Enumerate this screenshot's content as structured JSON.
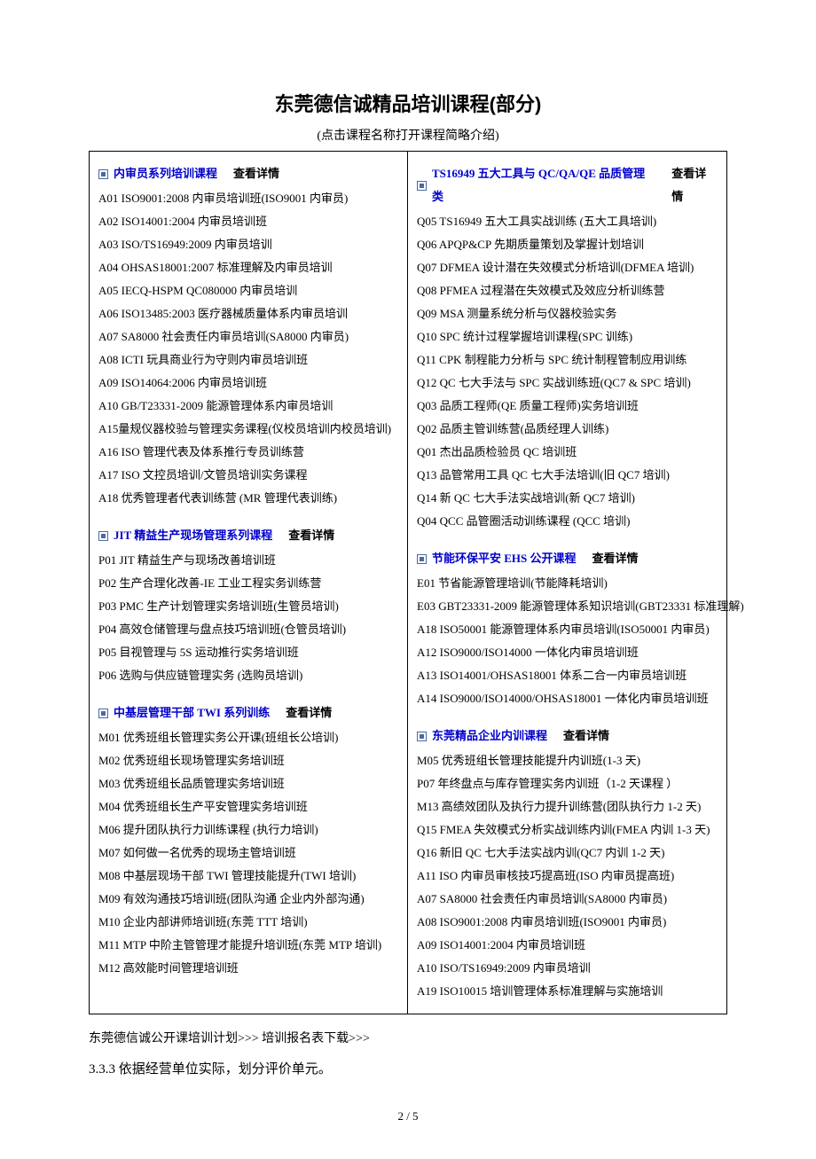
{
  "title": "东莞德信诚精品培训课程(部分)",
  "subtitle": "(点击课程名称打开课程简略介绍)",
  "detail_label": "查看详情",
  "page_number": "2 / 5",
  "bottom_line": "东莞德信诚公开课培训计划>>>    培训报名表下载>>>",
  "body_text": "3.3.3 依据经营单位实际，划分评价单元。",
  "left": [
    {
      "head": "内审员系列培训课程",
      "items": [
        "A01 ISO9001:2008 内审员培训班(ISO9001 内审员)",
        "A02 ISO14001:2004 内审员培训班",
        "A03 ISO/TS16949:2009 内审员培训",
        "A04 OHSAS18001:2007 标准理解及内审员培训",
        "A05 IECQ-HSPM QC080000 内审员培训",
        "A06 ISO13485:2003 医疗器械质量体系内审员培训",
        "A07 SA8000 社会责任内审员培训(SA8000 内审员)",
        "A08 ICTI 玩具商业行为守则内审员培训班",
        "A09 ISO14064:2006 内审员培训班",
        "A10 GB/T23331-2009 能源管理体系内审员培训",
        "A15量规仪器校验与管理实务课程(仪校员培训内校员培训)",
        "A16 ISO 管理代表及体系推行专员训练营",
        "A17 ISO 文控员培训/文管员培训实务课程",
        "A18 优秀管理者代表训练营 (MR 管理代表训练)"
      ]
    },
    {
      "head": "JIT 精益生产现场管理系列课程",
      "items": [
        "P01 JIT 精益生产与现场改善培训班",
        "P02 生产合理化改善-IE 工业工程实务训练营",
        "P03 PMC 生产计划管理实务培训班(生管员培训)",
        "P04 高效仓储管理与盘点技巧培训班(仓管员培训)",
        "P05 目视管理与 5S 运动推行实务培训班",
        "P06 选购与供应链管理实务 (选购员培训)"
      ]
    },
    {
      "head": "中基层管理干部 TWI 系列训练",
      "items": [
        "M01 优秀班组长管理实务公开课(班组长公培训)",
        "M02 优秀班组长现场管理实务培训班",
        "M03 优秀班组长品质管理实务培训班",
        "M04 优秀班组长生产平安管理实务培训班",
        "M06 提升团队执行力训练课程 (执行力培训)",
        "M07 如何做一名优秀的现场主管培训班",
        "M08 中基层现场干部 TWI 管理技能提升(TWI 培训)",
        "M09 有效沟通技巧培训班(团队沟通 企业内外部沟通)",
        "M10 企业内部讲师培训班(东莞 TTT 培训)",
        "M11 MTP 中阶主管管理才能提升培训班(东莞 MTP 培训)",
        "M12 高效能时间管理培训班"
      ]
    }
  ],
  "right": [
    {
      "head": "TS16949 五大工具与 QC/QA/QE 品质管理类",
      "items": [
        "Q05 TS16949 五大工具实战训练 (五大工具培训)",
        "Q06 APQP&CP 先期质量策划及掌握计划培训",
        "Q07 DFMEA 设计潜在失效模式分析培训(DFMEA 培训)",
        "Q08 PFMEA 过程潜在失效模式及效应分析训练营",
        "Q09 MSA 测量系统分析与仪器校验实务",
        "Q10 SPC 统计过程掌握培训课程(SPC 训练)",
        "Q11 CPK 制程能力分析与 SPC 统计制程管制应用训练",
        "Q12 QC 七大手法与 SPC 实战训练班(QC7 & SPC 培训)",
        "Q03 品质工程师(QE 质量工程师)实务培训班",
        "Q02 品质主管训练营(品质经理人训练)",
        "Q01 杰出品质检验员 QC 培训班",
        "Q13 品管常用工具 QC 七大手法培训(旧 QC7 培训)",
        "Q14 新 QC 七大手法实战培训(新 QC7 培训)",
        "Q04 QCC 品管圈活动训练课程 (QCC 培训)"
      ]
    },
    {
      "head": "节能环保平安 EHS 公开课程",
      "items": [
        "E01 节省能源管理培训(节能降耗培训)",
        "E03 GBT23331-2009 能源管理体系知识培训(GBT23331 标准理解)",
        "A18 ISO50001 能源管理体系内审员培训(ISO50001 内审员)",
        "A12 ISO9000/ISO14000 一体化内审员培训班",
        "A13 ISO14001/OHSAS18001 体系二合一内审员培训班",
        "A14 ISO9000/ISO14000/OHSAS18001 一体化内审员培训班"
      ]
    },
    {
      "head": "东莞精品企业内训课程",
      "items": [
        "M05 优秀班组长管理技能提升内训班(1-3 天)",
        "P07 年终盘点与库存管理实务内训班（1-2 天课程 ）",
        "M13 高绩效团队及执行力提升训练营(团队执行力 1-2 天)",
        "Q15 FMEA 失效模式分析实战训练内训(FMEA 内训 1-3 天)",
        "Q16 新旧 QC 七大手法实战内训(QC7 内训 1-2 天)",
        "A11 ISO 内审员审核技巧提高班(ISO 内审员提高班)",
        "A07 SA8000 社会责任内审员培训(SA8000 内审员)",
        "A08 ISO9001:2008 内审员培训班(ISO9001 内审员)",
        "A09 ISO14001:2004 内审员培训班",
        "A10 ISO/TS16949:2009 内审员培训",
        "A19 ISO10015 培训管理体系标准理解与实施培训"
      ]
    }
  ]
}
